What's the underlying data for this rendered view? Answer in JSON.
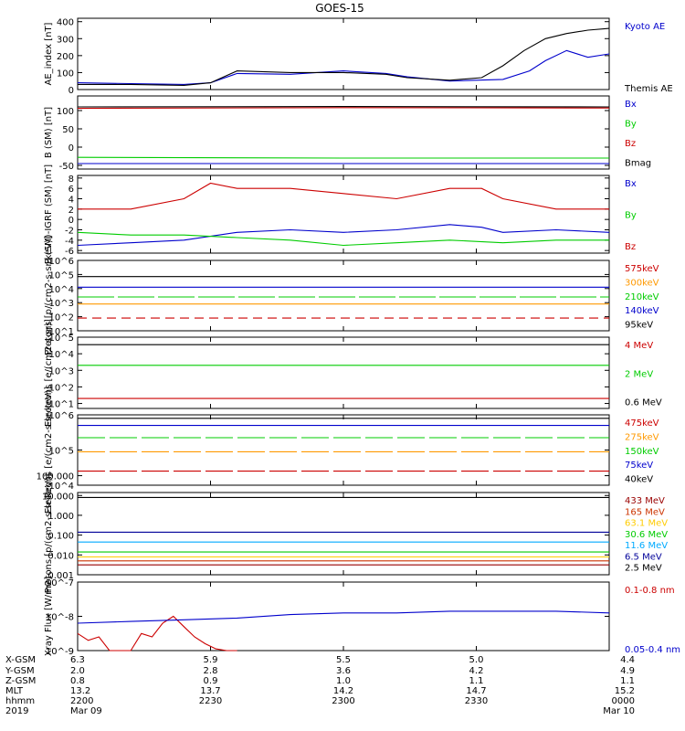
{
  "title": "GOES-15",
  "chart_data": [
    {
      "type": "line",
      "ylabel": "AE_index [nT]",
      "ylim": [
        0,
        420
      ],
      "yticks": [
        "0",
        "100",
        "200",
        "300",
        "400"
      ],
      "ytick_values": [
        0,
        100,
        200,
        300,
        400
      ],
      "series": [
        {
          "name": "Kyoto AE",
          "color": "#0000cc",
          "x": [
            0,
            10,
            20,
            25,
            30,
            40,
            50,
            58,
            62,
            70,
            80,
            85,
            88,
            92,
            96,
            100
          ],
          "y": [
            40,
            35,
            30,
            40,
            95,
            90,
            110,
            95,
            75,
            50,
            60,
            110,
            170,
            230,
            190,
            210
          ]
        },
        {
          "name": "Themis AE",
          "color": "#000000",
          "x": [
            0,
            10,
            20,
            25,
            30,
            40,
            50,
            58,
            62,
            70,
            76,
            80,
            84,
            88,
            92,
            96,
            100
          ],
          "y": [
            30,
            30,
            25,
            40,
            110,
            100,
            100,
            90,
            70,
            55,
            70,
            140,
            230,
            300,
            330,
            350,
            360
          ]
        }
      ]
    },
    {
      "type": "line",
      "ylabel": "B (SM) [nT]",
      "ylim": [
        -60,
        140
      ],
      "yticks": [
        "-50",
        "0",
        "50",
        "100"
      ],
      "ytick_values": [
        -50,
        0,
        50,
        100
      ],
      "series": [
        {
          "name": "Bx",
          "color": "#0000cc",
          "x": [
            0,
            100
          ],
          "y": [
            -45,
            -45
          ]
        },
        {
          "name": "By",
          "color": "#00cc00",
          "x": [
            0,
            50,
            100
          ],
          "y": [
            -28,
            -30,
            -30
          ]
        },
        {
          "name": "Bz",
          "color": "#cc0000",
          "x": [
            0,
            50,
            100
          ],
          "y": [
            106,
            108,
            107
          ]
        },
        {
          "name": "Bmag",
          "color": "#000000",
          "x": [
            0,
            50,
            100
          ],
          "y": [
            110,
            111,
            110
          ]
        }
      ]
    },
    {
      "type": "line",
      "ylabel": "B (SM)-IGRF (SM) [nT]",
      "ylim": [
        -6.5,
        8.5
      ],
      "yticks": [
        "-6",
        "-4",
        "-2",
        "0",
        "2",
        "4",
        "6",
        "8"
      ],
      "ytick_values": [
        -6,
        -4,
        -2,
        0,
        2,
        4,
        6,
        8
      ],
      "series": [
        {
          "name": "Bx",
          "color": "#0000cc",
          "x": [
            0,
            10,
            20,
            30,
            40,
            50,
            60,
            70,
            76,
            80,
            90,
            100
          ],
          "y": [
            -5,
            -4.5,
            -4,
            -2.5,
            -2,
            -2.5,
            -2,
            -1,
            -1.5,
            -2.5,
            -2,
            -2.5
          ]
        },
        {
          "name": "By",
          "color": "#00cc00",
          "x": [
            0,
            10,
            20,
            30,
            40,
            50,
            60,
            70,
            80,
            90,
            100
          ],
          "y": [
            -2.5,
            -3,
            -3,
            -3.5,
            -4,
            -5,
            -4.5,
            -4,
            -4.5,
            -4,
            -4
          ]
        },
        {
          "name": "Bz",
          "color": "#cc0000",
          "x": [
            0,
            10,
            20,
            25,
            30,
            40,
            50,
            60,
            70,
            76,
            80,
            90,
            100
          ],
          "y": [
            2,
            2,
            4,
            7,
            6,
            6,
            5,
            4,
            6,
            6,
            4,
            2,
            2
          ]
        }
      ]
    },
    {
      "type": "line",
      "ylabel": "Protons [p/(cm2-s-sr-keV)]",
      "log": true,
      "ylim_exp": [
        1,
        6
      ],
      "yticks": [
        "10^1",
        "10^2",
        "10^3",
        "10^4",
        "10^5",
        "10^6"
      ],
      "ytick_exp": [
        1,
        2,
        3,
        4,
        5,
        6
      ],
      "series": [
        {
          "name": "575keV",
          "color": "#cc0000",
          "x": [
            0,
            100
          ],
          "y_exp": [
            1.9,
            1.9
          ],
          "dash": "10 6"
        },
        {
          "name": "300keV",
          "color": "#ff9900",
          "x": [
            0,
            100
          ],
          "y_exp": [
            2.9,
            2.9
          ]
        },
        {
          "name": "210keV",
          "color": "#00cc00",
          "x": [
            0,
            100
          ],
          "y_exp": [
            3.4,
            3.4
          ],
          "dash": "40 4"
        },
        {
          "name": "140keV",
          "color": "#0000cc",
          "x": [
            0,
            100
          ],
          "y_exp": [
            4.1,
            4.1
          ]
        },
        {
          "name": "95keV",
          "color": "#000000",
          "x": [
            0,
            100
          ],
          "y_exp": [
            4.85,
            4.85
          ]
        }
      ]
    },
    {
      "type": "line",
      "ylabel": "Electrons [e/(cm2-s-sr)]",
      "log": true,
      "ylim_exp": [
        0.7,
        5.0
      ],
      "yticks": [
        "10^1",
        "10^2",
        "10^3",
        "10^4",
        "10^5"
      ],
      "ytick_exp": [
        1,
        2,
        3,
        4,
        5
      ],
      "series": [
        {
          "name": "4 MeV",
          "color": "#cc0000",
          "x": [
            0,
            100
          ],
          "y_exp": [
            1.3,
            1.3
          ]
        },
        {
          "name": "2 MeV",
          "color": "#00cc00",
          "x": [
            0,
            100
          ],
          "y_exp": [
            3.3,
            3.3
          ]
        },
        {
          "name": "0.6 MeV",
          "color": "#000000",
          "x": [
            0,
            100
          ],
          "y_exp": [
            4.55,
            4.55
          ]
        }
      ]
    },
    {
      "type": "line",
      "ylabel": "Electrons [e/(cm2-s-sr-keV)]",
      "log": true,
      "ylim_exp": [
        4,
        6
      ],
      "yticks": [
        "10^4",
        "10^5",
        "10^6"
      ],
      "ytick_exp": [
        4,
        5,
        6
      ],
      "series": [
        {
          "name": "475keV",
          "color": "#cc0000",
          "x": [
            0,
            100
          ],
          "y_exp": [
            4.4,
            4.4
          ],
          "dash": "30 5"
        },
        {
          "name": "275keV",
          "color": "#ff9900",
          "x": [
            0,
            100
          ],
          "y_exp": [
            4.95,
            4.95
          ],
          "dash": "30 5"
        },
        {
          "name": "150keV",
          "color": "#00cc00",
          "x": [
            0,
            100
          ],
          "y_exp": [
            5.35,
            5.35
          ],
          "dash": "30 5"
        },
        {
          "name": "75keV",
          "color": "#0000cc",
          "x": [
            0,
            100
          ],
          "y_exp": [
            5.7,
            5.7
          ]
        },
        {
          "name": "40keV",
          "color": "#000000",
          "x": [
            0,
            100
          ],
          "y_exp": [
            5.9,
            5.9
          ]
        }
      ]
    },
    {
      "type": "line",
      "ylabel": "Protons [p/(cm2-s-sr-keV)]",
      "log": true,
      "ylim_exp": [
        -3,
        1.15
      ],
      "yticks": [
        "0.001",
        "0.010",
        "0.100",
        "1.000",
        "10.000",
        "100.000"
      ],
      "ytick_exp": [
        -3,
        -2,
        -1,
        0,
        1,
        2
      ],
      "series": [
        {
          "name": "433 MeV",
          "color": "#990000",
          "x": [
            0,
            100
          ],
          "y_exp": [
            -2.5,
            -2.5
          ]
        },
        {
          "name": "165 MeV",
          "color": "#cc3300",
          "x": [
            0,
            100
          ],
          "y_exp": [
            -2.3,
            -2.3
          ]
        },
        {
          "name": "63.1 MeV",
          "color": "#ffcc00",
          "x": [
            0,
            100
          ],
          "y_exp": [
            -2.1,
            -2.1
          ]
        },
        {
          "name": "30.6 MeV",
          "color": "#00cc00",
          "x": [
            0,
            100
          ],
          "y_exp": [
            -1.85,
            -1.85
          ]
        },
        {
          "name": "11.6 MeV",
          "color": "#00aaff",
          "x": [
            0,
            100
          ],
          "y_exp": [
            -1.35,
            -1.35
          ]
        },
        {
          "name": "6.5 MeV",
          "color": "#000099",
          "x": [
            0,
            100
          ],
          "y_exp": [
            -0.85,
            -0.85
          ]
        },
        {
          "name": "2.5 MeV",
          "color": "#000000",
          "x": [
            0,
            100
          ],
          "y_exp": [
            0.9,
            0.9
          ]
        }
      ]
    },
    {
      "type": "line",
      "ylabel": "Xray Flux [W/m2]",
      "log": true,
      "ylim_exp": [
        -9,
        -7
      ],
      "yticks": [
        "10^-9",
        "10^-8",
        "10^-7"
      ],
      "ytick_exp": [
        -9,
        -8,
        -7
      ],
      "series": [
        {
          "name": "0.1-0.8 nm",
          "color": "#cc0000",
          "x": [
            0,
            2,
            4,
            6,
            8,
            10,
            12,
            14,
            16,
            18,
            20,
            22,
            24,
            26,
            28,
            30
          ],
          "y_exp": [
            -8.5,
            -8.7,
            -8.6,
            -9.0,
            -9.0,
            -9.0,
            -8.5,
            -8.6,
            -8.2,
            -8.0,
            -8.3,
            -8.6,
            -8.8,
            -8.95,
            -9.0,
            -9.0
          ]
        },
        {
          "name": "0.05-0.4 nm",
          "color": "#0000cc",
          "x": [
            0,
            10,
            20,
            30,
            40,
            50,
            60,
            70,
            80,
            90,
            100
          ],
          "y_exp": [
            -8.2,
            -8.15,
            -8.1,
            -8.05,
            -7.95,
            -7.9,
            -7.9,
            -7.85,
            -7.85,
            -7.85,
            -7.9
          ]
        }
      ]
    }
  ],
  "ephemeris": {
    "row_labels": [
      "X-GSM",
      "Y-GSM",
      "Z-GSM",
      "MLT",
      "hhmm",
      "2019"
    ],
    "columns": [
      [
        "6.3",
        "2.0",
        "0.8",
        "13.2",
        "2200",
        "Mar 09"
      ],
      [
        "5.9",
        "2.8",
        "0.9",
        "13.7",
        "2230",
        ""
      ],
      [
        "5.5",
        "3.6",
        "1.0",
        "14.2",
        "2300",
        ""
      ],
      [
        "5.0",
        "4.2",
        "1.1",
        "14.7",
        "2330",
        ""
      ],
      [
        "4.4",
        "4.9",
        "1.1",
        "15.2",
        "0000",
        "Mar 10"
      ]
    ]
  }
}
